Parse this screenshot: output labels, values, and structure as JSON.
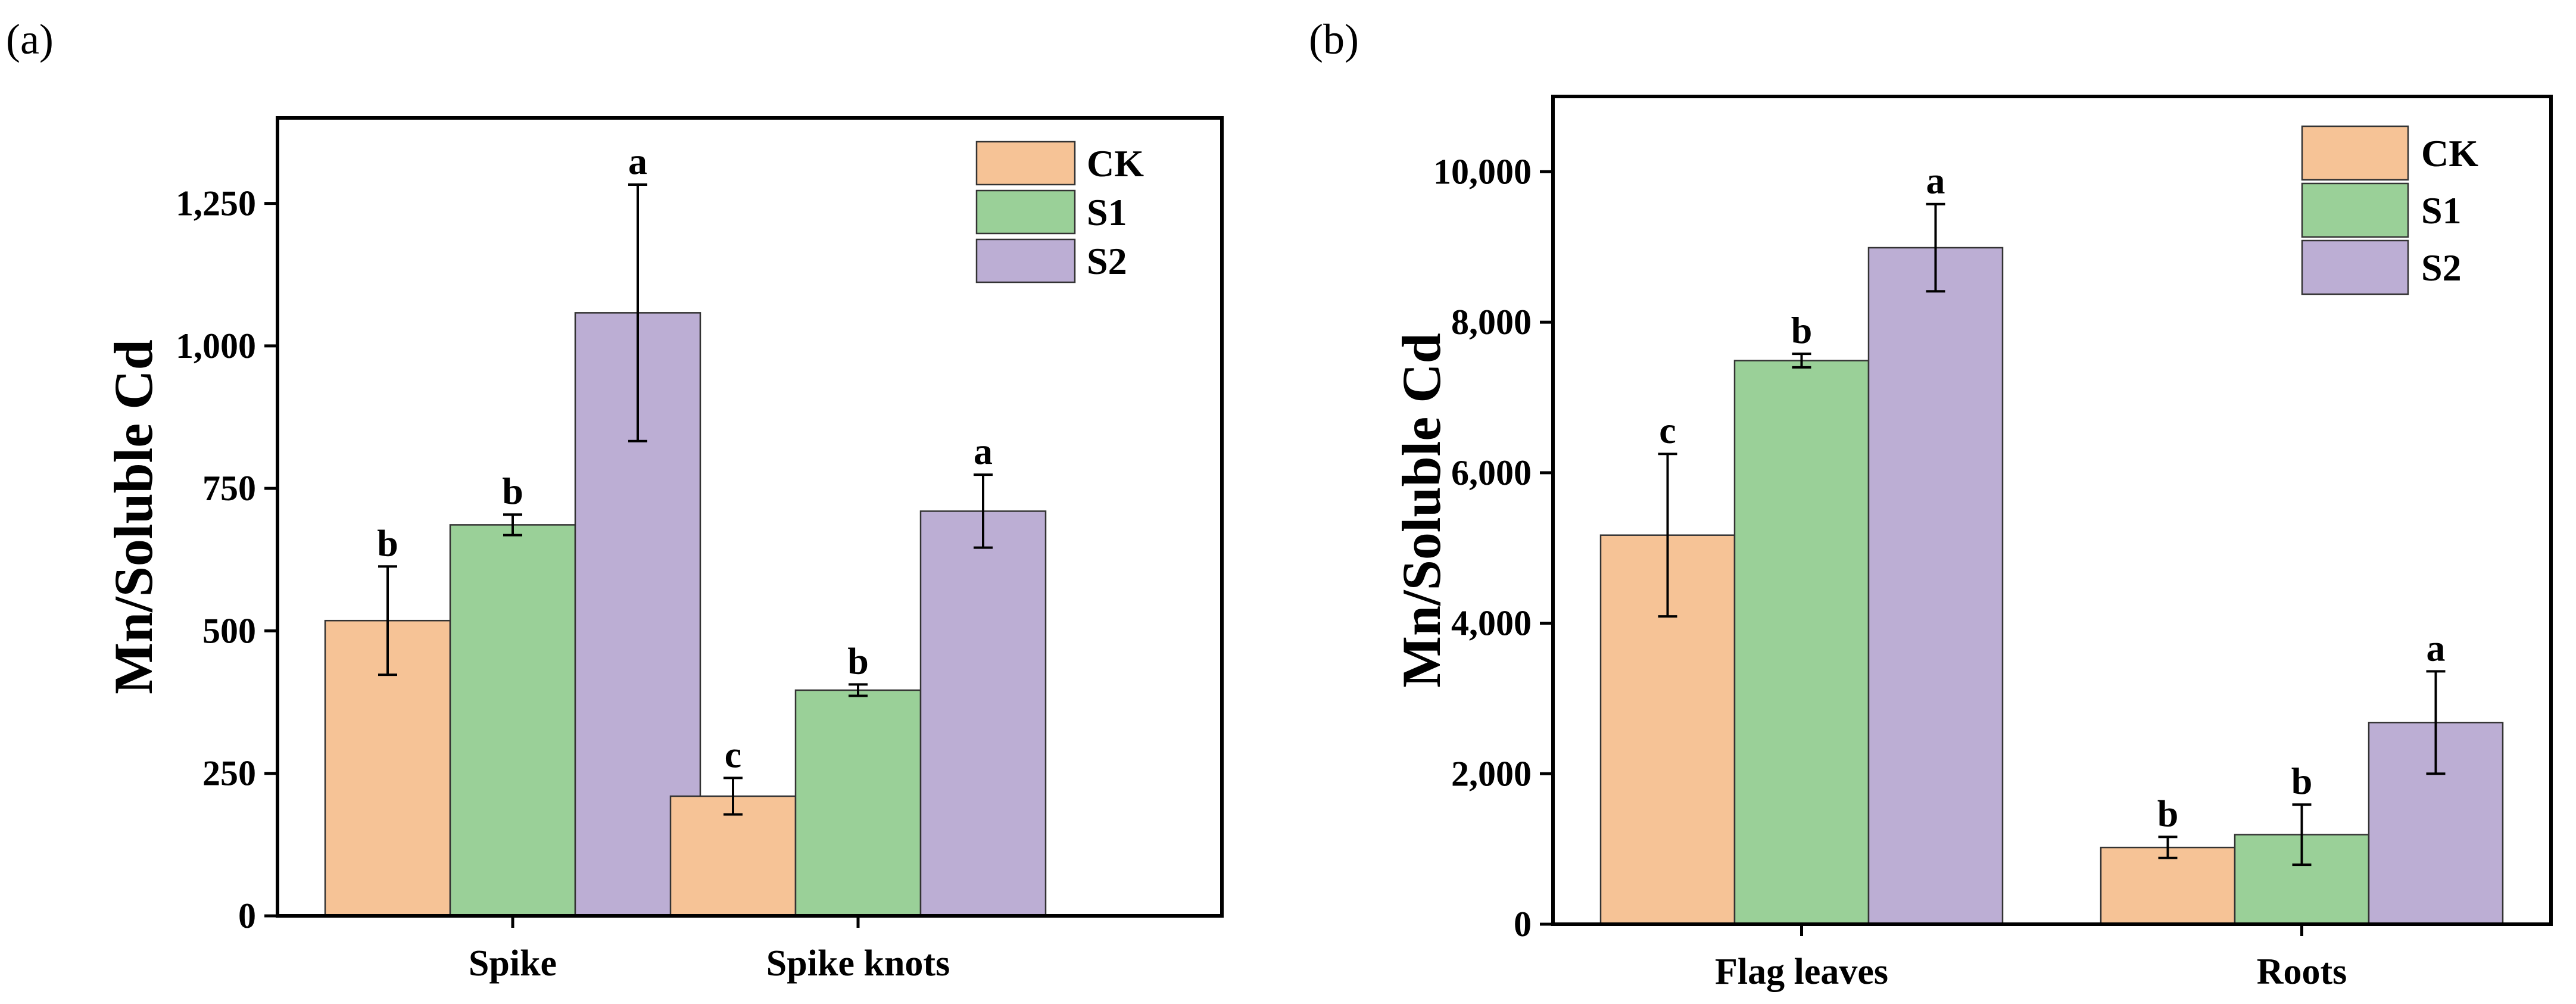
{
  "colors": {
    "CK": "#f6c396",
    "S1": "#9ad098",
    "S2": "#bcaed4",
    "axis": "#000000"
  },
  "chart_data": [
    {
      "type": "bar",
      "panel_label": "(a)",
      "ylabel": "Mn/Soluble Cd",
      "xlabel": "",
      "ylim": [
        0,
        1400
      ],
      "yticks": [
        0,
        250,
        500,
        750,
        1000,
        1250
      ],
      "ytick_labels": [
        "0",
        "250",
        "500",
        "750",
        "1,000",
        "1,250"
      ],
      "categories": [
        "Spike",
        "Spike knots"
      ],
      "legend": {
        "position": "top-right",
        "entries": [
          "CK",
          "S1",
          "S2"
        ]
      },
      "series": [
        {
          "name": "CK",
          "values": [
            518,
            210
          ],
          "errors": [
            95,
            32
          ],
          "letters": [
            "b",
            "c"
          ]
        },
        {
          "name": "S1",
          "values": [
            686,
            396
          ],
          "errors": [
            18,
            10
          ],
          "letters": [
            "b",
            "b"
          ]
        },
        {
          "name": "S2",
          "values": [
            1058,
            710
          ],
          "errors": [
            225,
            64
          ],
          "letters": [
            "a",
            "a"
          ]
        }
      ]
    },
    {
      "type": "bar",
      "panel_label": "(b)",
      "ylabel": "Mn/Soluble Cd",
      "xlabel": "",
      "ylim": [
        0,
        11000
      ],
      "yticks": [
        0,
        2000,
        4000,
        6000,
        8000,
        10000
      ],
      "ytick_labels": [
        "0",
        "2,000",
        "4,000",
        "6,000",
        "8,000",
        "10,000"
      ],
      "categories": [
        "Flag leaves",
        "Roots"
      ],
      "legend": {
        "position": "top-right",
        "entries": [
          "CK",
          "S1",
          "S2"
        ]
      },
      "series": [
        {
          "name": "CK",
          "values": [
            5170,
            1020
          ],
          "errors": [
            1080,
            140
          ],
          "letters": [
            "c",
            "b"
          ]
        },
        {
          "name": "S1",
          "values": [
            7490,
            1190
          ],
          "errors": [
            90,
            400
          ],
          "letters": [
            "b",
            "b"
          ]
        },
        {
          "name": "S2",
          "values": [
            8990,
            2680
          ],
          "errors": [
            580,
            680
          ],
          "letters": [
            "a",
            "a"
          ]
        }
      ]
    }
  ]
}
